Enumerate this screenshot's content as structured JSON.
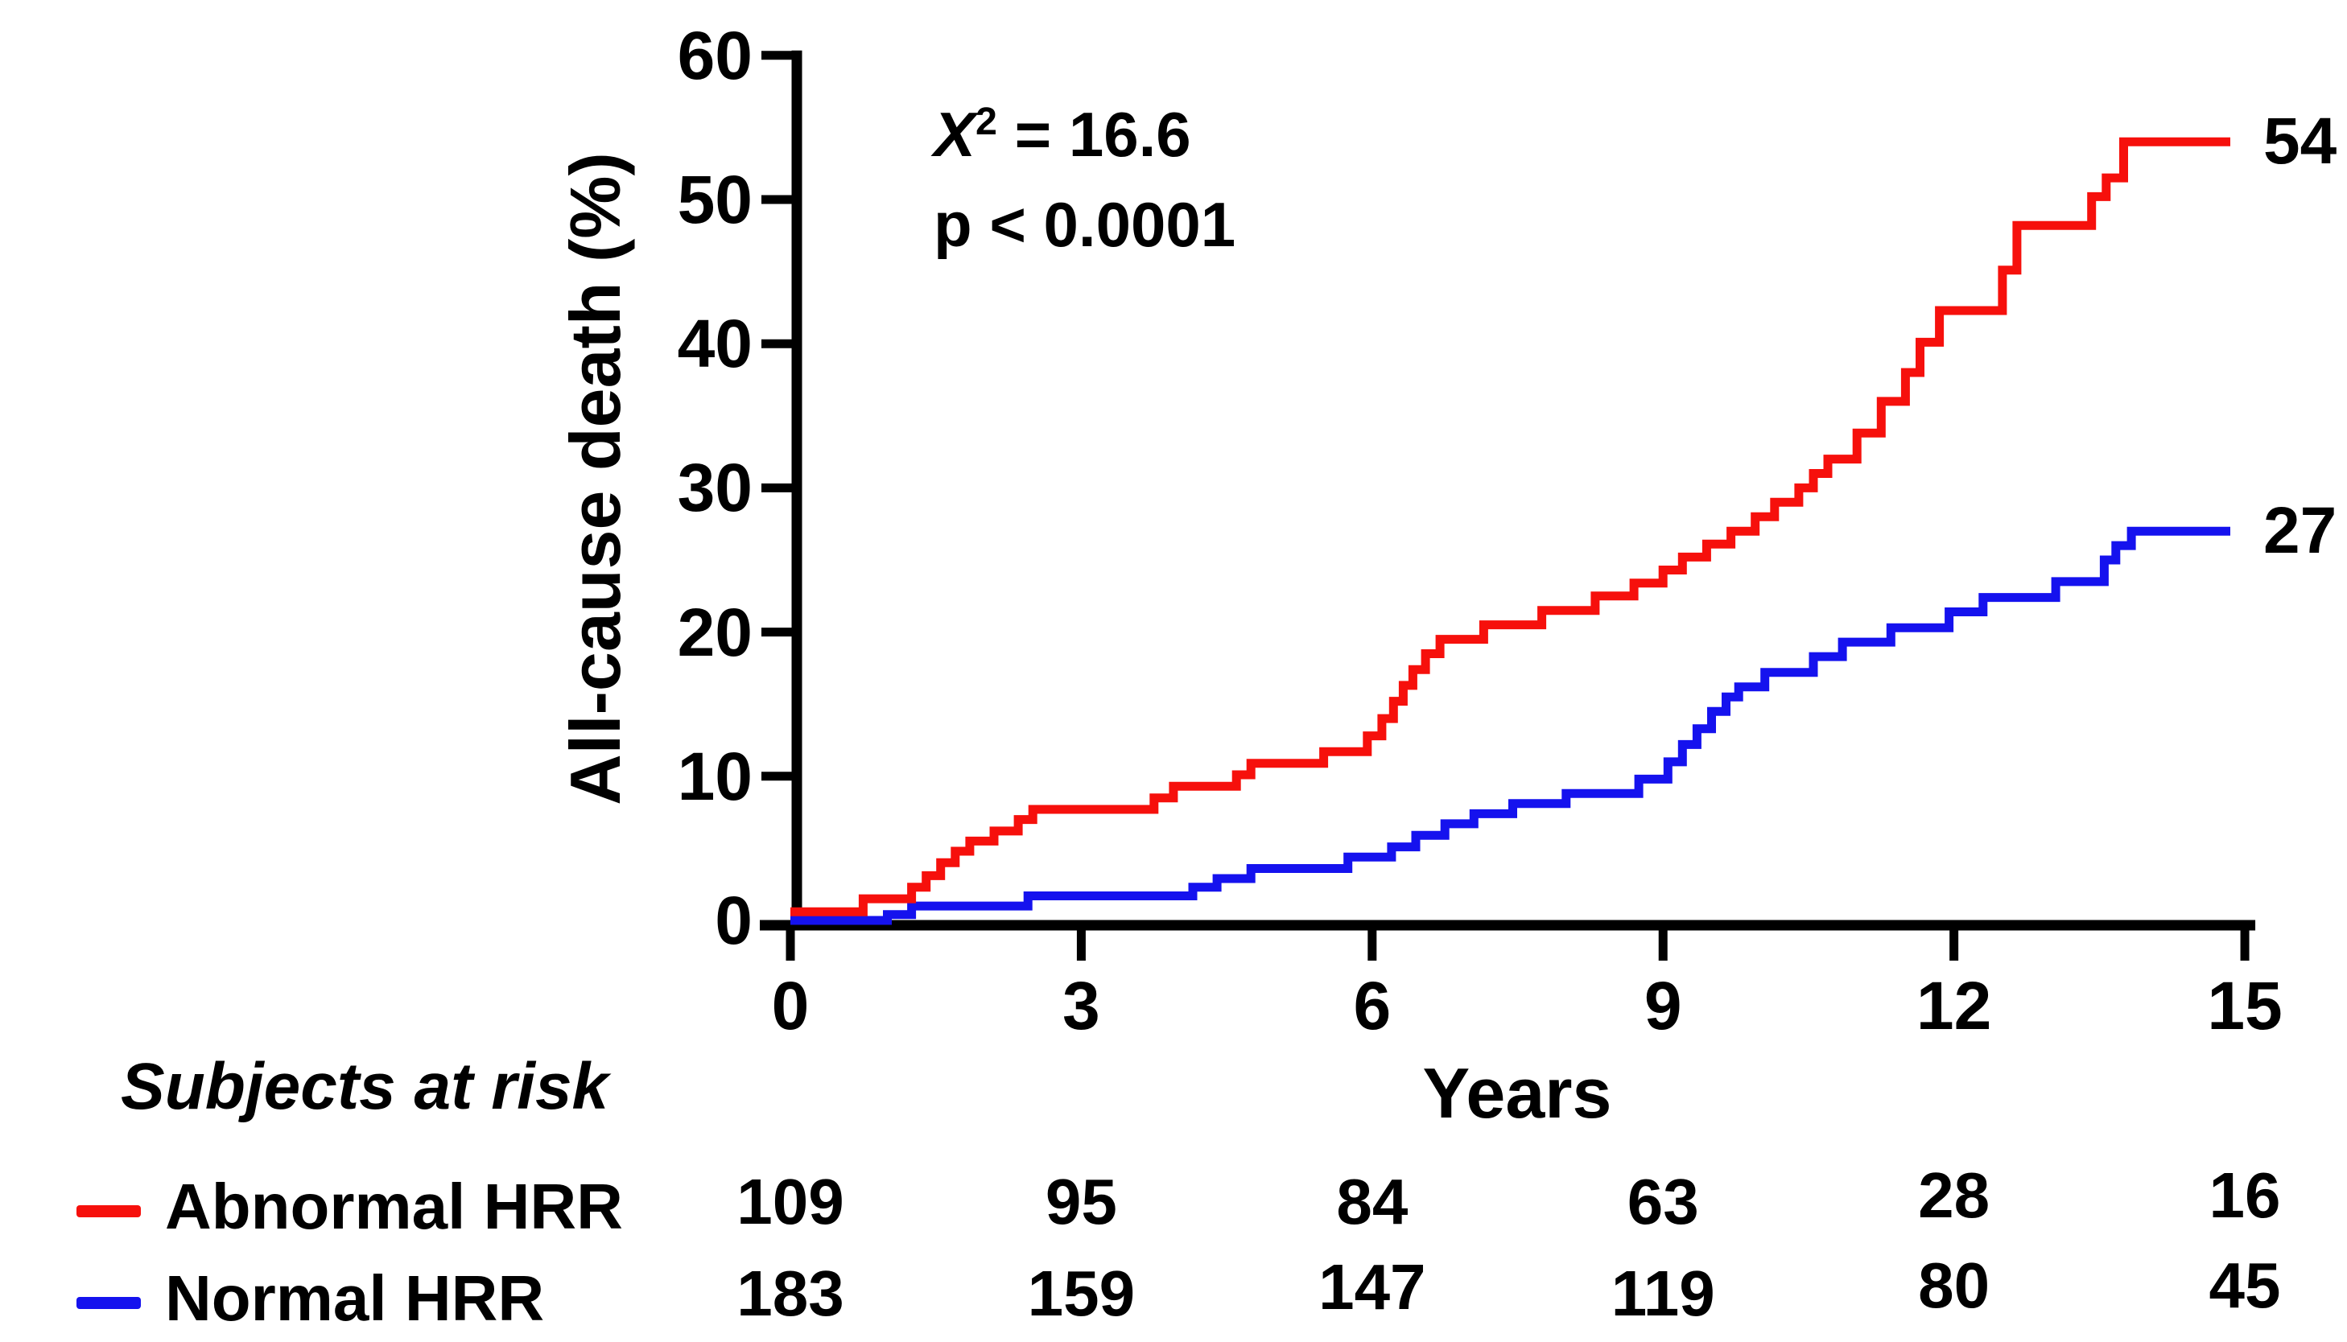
{
  "chart_data": {
    "type": "line",
    "subtype": "kaplan-meier-step",
    "title": "",
    "xlabel": "Years",
    "ylabel": "All-cause death (%)",
    "xlim": [
      0,
      15
    ],
    "ylim": [
      0,
      60
    ],
    "grid": false,
    "x_ticks": [
      0,
      3,
      6,
      9,
      12,
      15
    ],
    "x_tick_labels": [
      "0",
      "3",
      "6",
      "9",
      "12",
      "15"
    ],
    "y_ticks": [
      0,
      10,
      20,
      30,
      40,
      50,
      60
    ],
    "y_tick_labels": [
      "0",
      "10",
      "20",
      "30",
      "40",
      "50",
      "60"
    ],
    "annotation": {
      "stat_symbol": "X",
      "stat_exponent": "2",
      "stat_rest": " = 16.6",
      "p_value": "p < 0.0001"
    },
    "curve_end_x": 14.85,
    "series": [
      {
        "name": "Abnormal HRR",
        "color": "#f6100c",
        "end_label": "54",
        "end_value": 54,
        "points": [
          [
            0,
            0.6
          ],
          [
            0.75,
            1.5
          ],
          [
            1.25,
            2.3
          ],
          [
            1.4,
            3.1
          ],
          [
            1.55,
            4.0
          ],
          [
            1.7,
            4.8
          ],
          [
            1.85,
            5.5
          ],
          [
            2.1,
            6.2
          ],
          [
            2.35,
            7.0
          ],
          [
            2.5,
            7.7
          ],
          [
            3.75,
            8.5
          ],
          [
            3.95,
            9.3
          ],
          [
            4.6,
            10.1
          ],
          [
            4.75,
            10.9
          ],
          [
            5.5,
            11.7
          ],
          [
            5.95,
            12.8
          ],
          [
            6.1,
            14.0
          ],
          [
            6.22,
            15.2
          ],
          [
            6.32,
            16.3
          ],
          [
            6.42,
            17.4
          ],
          [
            6.55,
            18.5
          ],
          [
            6.7,
            19.5
          ],
          [
            7.15,
            20.5
          ],
          [
            7.75,
            21.5
          ],
          [
            8.3,
            22.5
          ],
          [
            8.7,
            23.4
          ],
          [
            9.0,
            24.3
          ],
          [
            9.2,
            25.2
          ],
          [
            9.45,
            26.1
          ],
          [
            9.7,
            27.0
          ],
          [
            9.95,
            28.0
          ],
          [
            10.15,
            29.0
          ],
          [
            10.4,
            30.0
          ],
          [
            10.55,
            31.0
          ],
          [
            10.7,
            32.0
          ],
          [
            11.0,
            33.8
          ],
          [
            11.25,
            36.0
          ],
          [
            11.5,
            38.0
          ],
          [
            11.65,
            40.1
          ],
          [
            11.85,
            42.3
          ],
          [
            12.5,
            45.1
          ],
          [
            12.65,
            48.2
          ],
          [
            13.42,
            50.2
          ],
          [
            13.57,
            51.5
          ],
          [
            13.75,
            54.0
          ]
        ]
      },
      {
        "name": "Normal HRR",
        "color": "#1512ee",
        "end_label": "27",
        "end_value": 27,
        "points": [
          [
            0,
            0.0
          ],
          [
            1.0,
            0.4
          ],
          [
            1.25,
            1.0
          ],
          [
            2.45,
            1.7
          ],
          [
            4.15,
            2.3
          ],
          [
            4.4,
            2.9
          ],
          [
            4.75,
            3.6
          ],
          [
            5.75,
            4.4
          ],
          [
            6.2,
            5.1
          ],
          [
            6.45,
            5.9
          ],
          [
            6.75,
            6.7
          ],
          [
            7.05,
            7.4
          ],
          [
            7.45,
            8.1
          ],
          [
            8.0,
            8.8
          ],
          [
            8.75,
            9.8
          ],
          [
            9.05,
            11.0
          ],
          [
            9.2,
            12.2
          ],
          [
            9.35,
            13.3
          ],
          [
            9.5,
            14.5
          ],
          [
            9.65,
            15.5
          ],
          [
            9.78,
            16.2
          ],
          [
            10.05,
            17.2
          ],
          [
            10.55,
            18.3
          ],
          [
            10.85,
            19.3
          ],
          [
            11.35,
            20.3
          ],
          [
            11.95,
            21.4
          ],
          [
            12.3,
            22.4
          ],
          [
            13.05,
            23.5
          ],
          [
            13.55,
            25.0
          ],
          [
            13.67,
            26.0
          ],
          [
            13.83,
            27.0
          ]
        ]
      }
    ],
    "legend_position": "bottom-left"
  },
  "risk_table": {
    "title": "Subjects at risk",
    "time_points": [
      0,
      3,
      6,
      9,
      12,
      15
    ],
    "rows": [
      {
        "label": "Abnormal HRR",
        "color": "#f6100c",
        "counts": [
          "109",
          "95",
          "84",
          "63",
          "28",
          "16"
        ]
      },
      {
        "label": "Normal HRR",
        "color": "#1512ee",
        "counts": [
          "183",
          "159",
          "147",
          "119",
          "80",
          "45"
        ]
      }
    ]
  }
}
